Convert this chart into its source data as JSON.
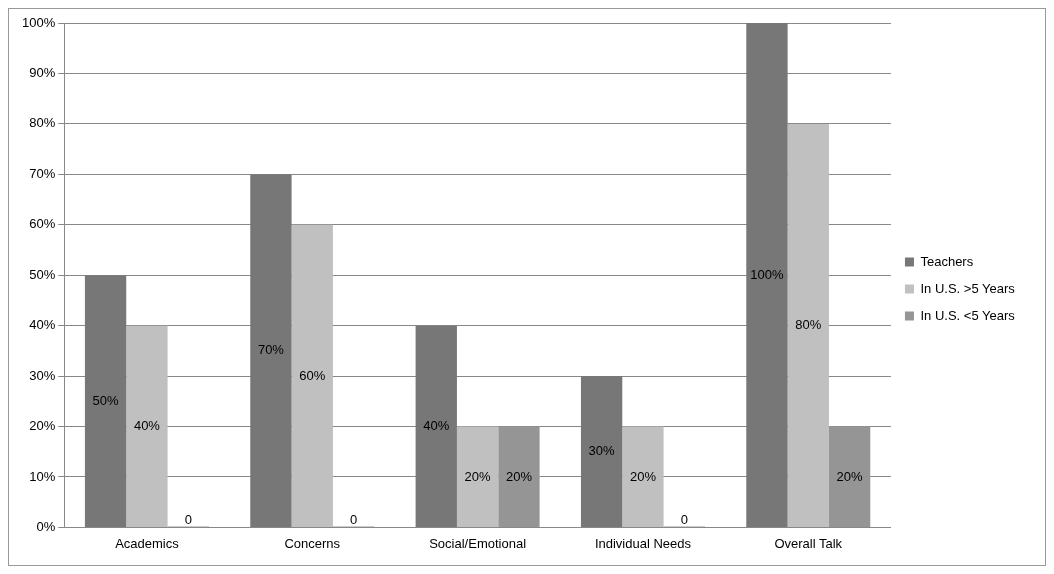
{
  "chart_data": {
    "type": "bar",
    "categories": [
      "Academics",
      "Concerns",
      "Social/Emotional",
      "Individual Needs",
      "Overall Talk"
    ],
    "series": [
      {
        "name": "Teachers",
        "color": "#777777",
        "values": [
          50,
          70,
          40,
          30,
          100
        ],
        "value_labels": [
          "50%",
          "70%",
          "40%",
          "30%",
          "100%"
        ]
      },
      {
        "name": "In U.S. >5 Years",
        "color": "#c0c0c0",
        "values": [
          40,
          60,
          20,
          20,
          80
        ],
        "value_labels": [
          "40%",
          "60%",
          "20%",
          "20%",
          "80%"
        ]
      },
      {
        "name": "In U.S. <5 Years",
        "color": "#959595",
        "values": [
          0,
          0,
          20,
          0,
          20
        ],
        "value_labels": [
          "0",
          "0",
          "20%",
          "0",
          "20%"
        ]
      }
    ],
    "ylim": [
      0,
      100
    ],
    "yticks": [
      {
        "value": 0,
        "label": "0%"
      },
      {
        "value": 10,
        "label": "10%"
      },
      {
        "value": 20,
        "label": "20%"
      },
      {
        "value": 30,
        "label": "30%"
      },
      {
        "value": 40,
        "label": "40%"
      },
      {
        "value": 50,
        "label": "50%"
      },
      {
        "value": 60,
        "label": "60%"
      },
      {
        "value": 70,
        "label": "70%"
      },
      {
        "value": 80,
        "label": "80%"
      },
      {
        "value": 90,
        "label": "90%"
      },
      {
        "value": 100,
        "label": "100%"
      }
    ],
    "grid": "y",
    "legend": "right"
  }
}
